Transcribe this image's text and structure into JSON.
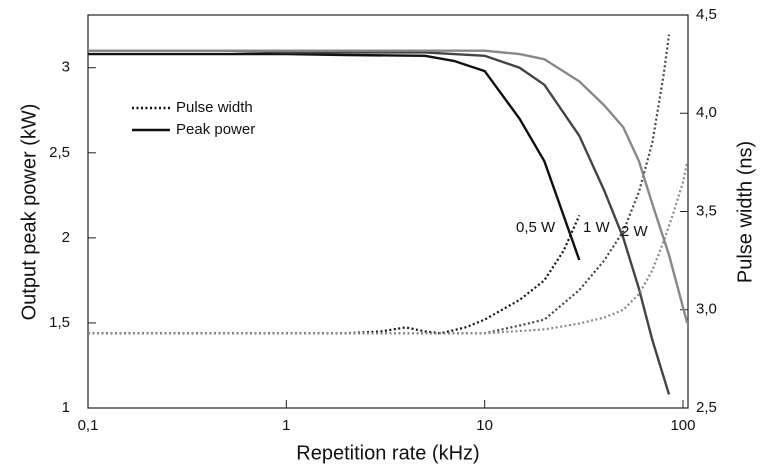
{
  "chart_data": {
    "type": "line",
    "x_label": "Repetition rate (kHz)",
    "y_label": "Output peak power (kW)",
    "y2_label": "Pulse width (ns)",
    "xlog": true,
    "xlim": [
      0.1,
      106
    ],
    "xticks": [
      {
        "value": 0.1,
        "label": "0,1"
      },
      1,
      10,
      100
    ],
    "ylim": [
      1,
      3.31
    ],
    "yticks": [
      1,
      {
        "value": 1.5,
        "label": "1,5"
      },
      2,
      {
        "value": 2.5,
        "label": "2,5"
      },
      3
    ],
    "y2lim": [
      2.5,
      4.5
    ],
    "y2ticks": [
      {
        "value": 2.5,
        "label": "2,5"
      },
      {
        "value": 3,
        "label": "3,0"
      },
      {
        "value": 3.5,
        "label": "3,5"
      },
      {
        "value": 4,
        "label": "4,0"
      },
      {
        "value": 4.5,
        "label": "4,5"
      }
    ],
    "legend": [
      {
        "label": "Pulse width",
        "style": "dotted"
      },
      {
        "label": "Peak power",
        "style": "solid"
      }
    ],
    "series": [
      {
        "name": "0,5 W",
        "color": "#111111",
        "x": [
          0.1,
          0.5,
          1,
          2,
          5,
          7,
          10,
          15,
          20,
          30
        ],
        "values": [
          3.08,
          3.08,
          3.08,
          3.075,
          3.07,
          3.04,
          2.98,
          2.7,
          2.45,
          1.87
        ],
        "pulse_x": [
          0.1,
          0.5,
          1,
          2,
          3,
          4,
          5,
          6,
          8,
          10,
          15,
          20,
          25,
          30
        ],
        "pulse_values": [
          2.88,
          2.88,
          2.88,
          2.88,
          2.89,
          2.91,
          2.89,
          2.88,
          2.91,
          2.95,
          3.05,
          3.15,
          3.3,
          3.48
        ]
      },
      {
        "name": "1 W",
        "color": "#444444",
        "x": [
          0.1,
          0.5,
          1,
          2,
          5,
          10,
          15,
          20,
          30,
          40,
          50,
          60,
          70,
          85
        ],
        "values": [
          3.1,
          3.1,
          3.09,
          3.09,
          3.09,
          3.07,
          3.0,
          2.9,
          2.6,
          2.28,
          2.0,
          1.7,
          1.4,
          1.08
        ],
        "pulse_x": [
          0.1,
          1,
          5,
          10,
          15,
          20,
          30,
          40,
          50,
          60,
          70,
          80,
          85
        ],
        "pulse_values": [
          2.88,
          2.88,
          2.88,
          2.88,
          2.92,
          2.95,
          3.1,
          3.25,
          3.4,
          3.6,
          3.85,
          4.2,
          4.4
        ]
      },
      {
        "name": "2 W",
        "color": "#888888",
        "x": [
          0.1,
          0.5,
          1,
          5,
          10,
          15,
          20,
          30,
          40,
          50,
          60,
          70,
          85,
          105
        ],
        "values": [
          3.1,
          3.1,
          3.1,
          3.1,
          3.1,
          3.08,
          3.05,
          2.92,
          2.78,
          2.65,
          2.45,
          2.2,
          1.9,
          1.5
        ],
        "pulse_x": [
          0.1,
          1,
          10,
          20,
          30,
          40,
          50,
          60,
          70,
          80,
          90,
          100,
          105
        ],
        "pulse_values": [
          2.88,
          2.88,
          2.88,
          2.9,
          2.93,
          2.96,
          3.0,
          3.08,
          3.2,
          3.35,
          3.5,
          3.65,
          3.75
        ]
      }
    ]
  }
}
